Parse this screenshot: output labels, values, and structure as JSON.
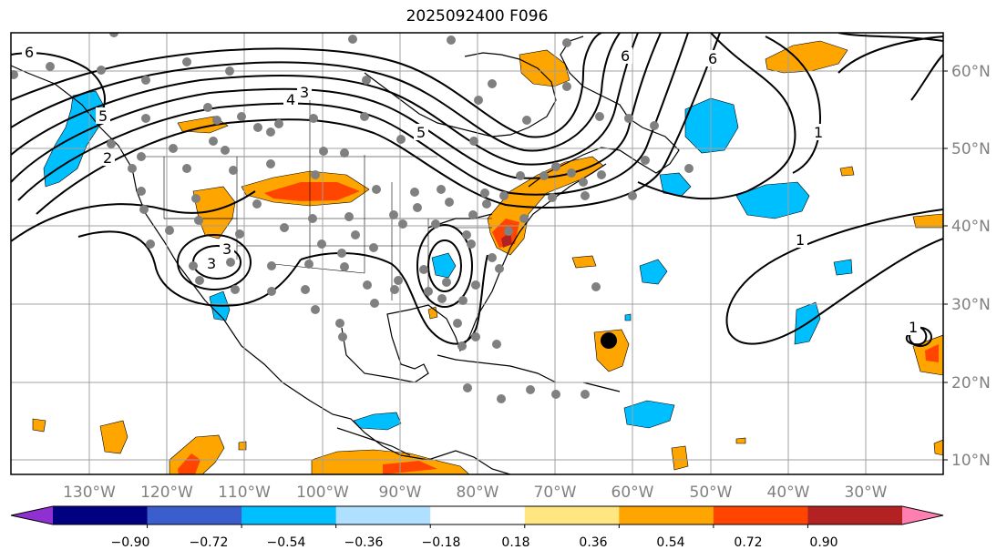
{
  "title": "2025092400 F096",
  "map": {
    "lon_ticks": [
      "130°W",
      "120°W",
      "110°W",
      "100°W",
      "90°W",
      "80°W",
      "70°W",
      "60°W",
      "50°W",
      "40°W",
      "30°W"
    ],
    "lat_ticks": [
      "60°N",
      "50°N",
      "40°N",
      "30°N",
      "20°N",
      "10°N"
    ],
    "contour_labels": [
      "6",
      "6",
      "6",
      "5",
      "5",
      "4",
      "3",
      "3",
      "2",
      "1",
      "1",
      "1",
      "3"
    ],
    "colors": {
      "grid": "#a0a0a0",
      "contour": "#000000",
      "stations": "#808080",
      "positive": [
        "#ffe680",
        "#ffa500",
        "#ff4500",
        "#b22222",
        "#ff80b0"
      ],
      "negative": [
        "#b0e0ff",
        "#00bfff",
        "#3050d0",
        "#000080",
        "#9030d0"
      ]
    }
  },
  "colorbar": {
    "tick_labels": [
      "−0.90",
      "−0.72",
      "−0.54",
      "−0.36",
      "−0.18",
      "0.18",
      "0.36",
      "0.54",
      "0.72",
      "0.90"
    ],
    "bins": [
      {
        "color": "#9030d0"
      },
      {
        "color": "#000080"
      },
      {
        "color": "#3a5fcd"
      },
      {
        "color": "#00bfff"
      },
      {
        "color": "#b0e0ff"
      },
      {
        "color": "#ffffff"
      },
      {
        "color": "#ffe680"
      },
      {
        "color": "#ffa500"
      },
      {
        "color": "#ff4500"
      },
      {
        "color": "#b22222"
      },
      {
        "color": "#ff80b0"
      }
    ]
  }
}
